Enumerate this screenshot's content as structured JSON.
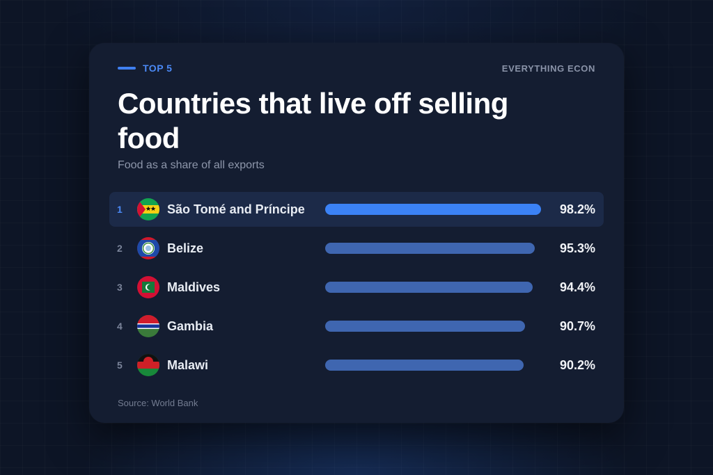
{
  "header": {
    "eyebrow": "TOP 5",
    "brand": "EVERYTHING ECON",
    "title": "Countries that live off selling food",
    "subtitle": "Food as a share of all exports"
  },
  "footer": {
    "source": "Source: World Bank"
  },
  "colors": {
    "accent": "#3b82f6",
    "bar": "#3f66b0",
    "card": "#141d31",
    "background": "#0d1526"
  },
  "chart_data": {
    "type": "bar",
    "orientation": "horizontal",
    "title": "Countries that live off selling food",
    "subtitle": "Food as a share of all exports",
    "unit": "%",
    "xlim": [
      0,
      100
    ],
    "grid": false,
    "highlighted_index": 0,
    "categories": [
      "São Tomé and Príncipe",
      "Belize",
      "Maldives",
      "Gambia",
      "Malawi"
    ],
    "ranks": [
      "1",
      "2",
      "3",
      "4",
      "5"
    ],
    "values": [
      98.2,
      95.3,
      94.4,
      90.7,
      90.2
    ],
    "value_labels": [
      "98.2%",
      "95.3%",
      "94.4%",
      "90.7%",
      "90.2%"
    ],
    "flag_icons": [
      "sao-tome-flag-icon",
      "belize-flag-icon",
      "maldives-flag-icon",
      "gambia-flag-icon",
      "malawi-flag-icon"
    ]
  }
}
